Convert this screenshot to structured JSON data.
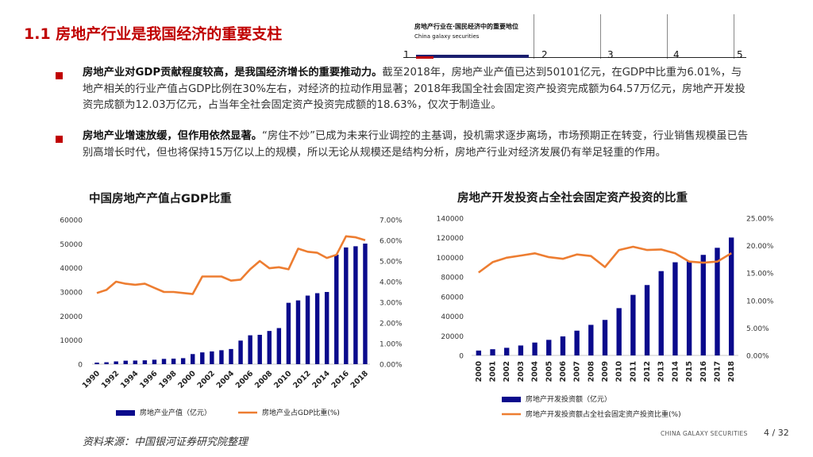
{
  "header": {
    "title": "1.1 房地产行业是我国经济的重要支柱",
    "nav_title": "房地产行业在·国民经济中的重要地位",
    "nav_subtitle": "China galaxy securities",
    "nav_numbers": [
      "1",
      "2",
      "3",
      "4",
      "5"
    ]
  },
  "bullets": [
    {
      "bold": "房地产业对GDP贡献程度较高，是我国经济增长的重要推动力。",
      "text": "截至2018年，房地产业产值已达到50101亿元，在GDP中比重为6.01%，与地产相关的行业产值占GDP比例在30%左右，对经济的拉动作用显著；2018年我国全社会固定资产投资完成额为64.57万亿元，房地产开发投资完成额为12.03万亿元，占当年全社会固定资产投资完成额的18.63%，仅次于制造业。"
    },
    {
      "bold": "房地产业增速放缓，但作用依然显著。",
      "text": "“房住不炒”已成为未来行业调控的主基调，投机需求逐步离场，市场预期正在转变，行业销售规模虽已告别高增长时代，但也将保持15万亿以上的规模，所以无论从规模还是结构分析，房地产行业对经济发展仍有举足轻重的作用。"
    }
  ],
  "source": "资料来源：中国银河证券研究院整理",
  "footer": {
    "brand": "CHINA GALAXY SECURITIES",
    "page": "4 / 32"
  },
  "colors": {
    "bar": "#0a0a8c",
    "line": "#ed7d31",
    "accent": "#c00000"
  },
  "chart_data": [
    {
      "type": "bar+line",
      "title": "中国房地产产值占GDP比重",
      "categories": [
        "1990",
        "1991",
        "1992",
        "1993",
        "1994",
        "1995",
        "1996",
        "1997",
        "1998",
        "1999",
        "2000",
        "2001",
        "2002",
        "2003",
        "2004",
        "2005",
        "2006",
        "2007",
        "2008",
        "2009",
        "2010",
        "2011",
        "2012",
        "2013",
        "2014",
        "2015",
        "2016",
        "2017",
        "2018"
      ],
      "tick_labels": [
        "1990",
        "1992",
        "1994",
        "1996",
        "1998",
        "2000",
        "2002",
        "2004",
        "2006",
        "2008",
        "2010",
        "2012",
        "2014",
        "2016",
        "2018"
      ],
      "series": [
        {
          "name": "房地产业产值（亿元）",
          "axis": "left",
          "kind": "bar",
          "values": [
            650,
            800,
            1150,
            1450,
            1500,
            1600,
            1850,
            2200,
            2300,
            2500,
            4200,
            4900,
            5300,
            5800,
            6300,
            9800,
            12000,
            12200,
            13800,
            15000,
            25500,
            26500,
            28500,
            29500,
            30000,
            45500,
            48500,
            49000,
            50101
          ]
        },
        {
          "name": "房地产业占GDP比重(%)",
          "axis": "right",
          "kind": "line",
          "values": [
            3.45,
            3.6,
            4.0,
            3.9,
            3.85,
            3.9,
            3.7,
            3.5,
            3.5,
            3.45,
            3.4,
            4.25,
            4.25,
            4.25,
            4.05,
            4.1,
            4.6,
            5.0,
            4.65,
            4.7,
            4.6,
            5.6,
            5.45,
            5.4,
            5.15,
            5.3,
            6.2,
            6.15,
            6.01
          ]
        }
      ],
      "yleft": {
        "range": [
          0,
          60000
        ],
        "ticks": [
          "0",
          "10000",
          "20000",
          "30000",
          "40000",
          "50000",
          "60000"
        ]
      },
      "yright": {
        "range": [
          0,
          7
        ],
        "ticks": [
          "0.00%",
          "1.00%",
          "2.00%",
          "3.00%",
          "4.00%",
          "5.00%",
          "6.00%",
          "7.00%"
        ]
      },
      "legend": [
        "房地产业产值（亿元）",
        "房地产业占GDP比重(%)"
      ]
    },
    {
      "type": "bar+line",
      "title": "房地产开发投资占全社会固定资产投资的比重",
      "categories": [
        "2000",
        "2001",
        "2002",
        "2003",
        "2004",
        "2005",
        "2006",
        "2007",
        "2008",
        "2009",
        "2010",
        "2011",
        "2012",
        "2013",
        "2014",
        "2015",
        "2016",
        "2017",
        "2018"
      ],
      "tick_labels": [
        "2000",
        "2001",
        "2002",
        "2003",
        "2004",
        "2005",
        "2006",
        "2007",
        "2008",
        "2009",
        "2010",
        "2011",
        "2012",
        "2013",
        "2014",
        "2015",
        "2016",
        "2017",
        "2018"
      ],
      "series": [
        {
          "name": "房地产开发投资额（亿元）",
          "axis": "left",
          "kind": "bar",
          "values": [
            4984,
            6344,
            7791,
            10154,
            13158,
            15909,
            19423,
            25289,
            31203,
            36232,
            48259,
            61797,
            71804,
            86013,
            95036,
            95979,
            102581,
            109799,
            120264
          ]
        },
        {
          "name": "房地产开发投资额占全社会固定资产投资比重(%)",
          "axis": "right",
          "kind": "line",
          "values": [
            15.1,
            17.0,
            17.8,
            18.2,
            18.6,
            17.9,
            17.6,
            18.4,
            18.1,
            16.1,
            19.2,
            19.8,
            19.2,
            19.3,
            18.6,
            17.1,
            16.9,
            17.1,
            18.63
          ]
        }
      ],
      "yleft": {
        "range": [
          0,
          140000
        ],
        "ticks": [
          "0",
          "20000",
          "40000",
          "60000",
          "80000",
          "100000",
          "120000",
          "140000"
        ]
      },
      "yright": {
        "range": [
          0,
          25
        ],
        "ticks": [
          "0.00%",
          "5.00%",
          "10.00%",
          "15.00%",
          "20.00%",
          "25.00%"
        ]
      },
      "legend": [
        "房地产开发投资额（亿元）",
        "房地产开发投资额占全社会固定资产投资比重(%)"
      ]
    }
  ]
}
